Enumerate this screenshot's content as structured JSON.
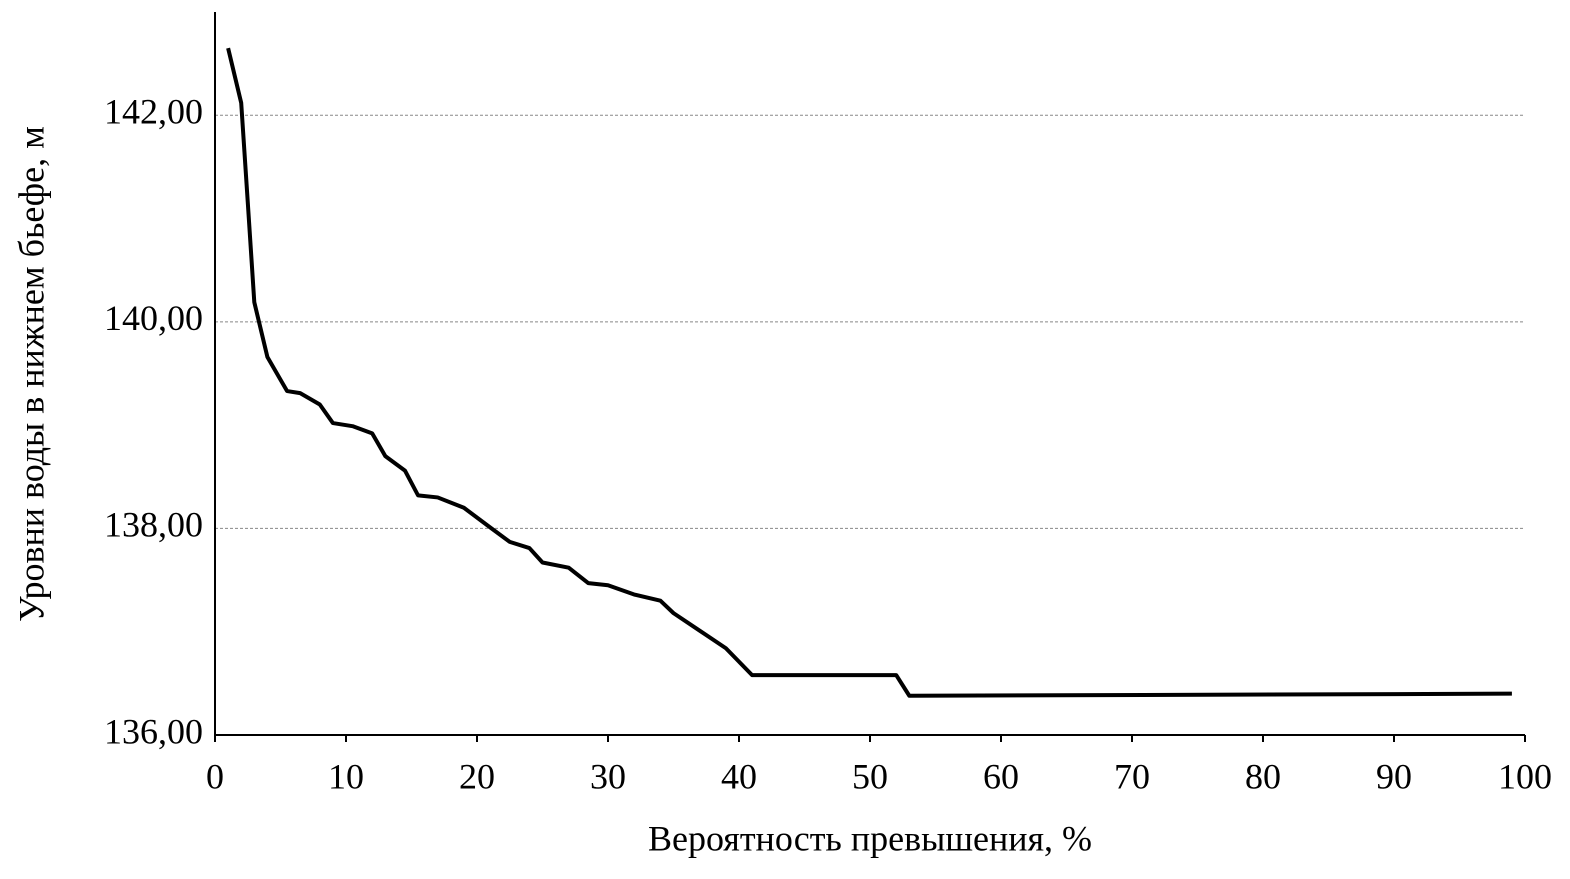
{
  "chart_data": {
    "type": "line",
    "x_label": "Вероятность превышения, %",
    "y_label": "Уровни воды в нижнем бьефе, м",
    "x": [
      1,
      2,
      2.5,
      3,
      4,
      5.5,
      6.5,
      8,
      9,
      10.5,
      12,
      13,
      14.5,
      15.5,
      17,
      19,
      21,
      22.5,
      24,
      25,
      27,
      28.5,
      30,
      32,
      34,
      35,
      37,
      39,
      41,
      52,
      53,
      99
    ],
    "values": [
      142.65,
      142.12,
      141.16,
      140.19,
      139.66,
      139.33,
      139.31,
      139.2,
      139.02,
      138.99,
      138.92,
      138.7,
      138.56,
      138.32,
      138.3,
      138.2,
      138.01,
      137.87,
      137.81,
      137.67,
      137.62,
      137.47,
      137.45,
      137.36,
      137.3,
      137.18,
      137.01,
      136.84,
      136.58,
      136.58,
      136.38,
      136.4
    ],
    "color": "#000000",
    "xlim": [
      0,
      100
    ],
    "xticks": [
      0,
      10,
      20,
      30,
      40,
      50,
      60,
      70,
      80,
      90,
      100
    ],
    "ylim": [
      136,
      143
    ],
    "yticks": [
      {
        "value": 136,
        "label": "136,00"
      },
      {
        "value": 138,
        "label": "138,00"
      },
      {
        "value": 140,
        "label": "140,00"
      },
      {
        "value": 142,
        "label": "142,00"
      }
    ],
    "grid": true
  }
}
